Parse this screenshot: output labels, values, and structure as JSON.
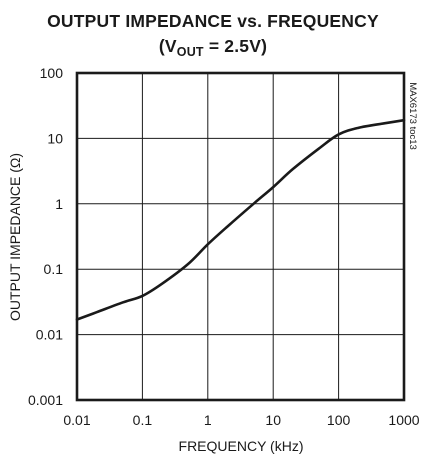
{
  "chart_data": {
    "type": "line",
    "title": "OUTPUT IMPEDANCE vs. FREQUENCY",
    "subtitle": {
      "prefix": "(V",
      "subscript": "OUT",
      "suffix": " = 2.5V)"
    },
    "xlabel": "FREQUENCY (kHz)",
    "ylabel": "OUTPUT IMPEDANCE (Ω)",
    "side_id": "MAX6173 toc13",
    "x_scale": "log",
    "y_scale": "log",
    "xlim": [
      0.01,
      1000
    ],
    "ylim": [
      0.001,
      100
    ],
    "x_ticks": [
      0.01,
      0.1,
      1,
      10,
      100,
      1000
    ],
    "y_ticks": [
      0.001,
      0.01,
      0.1,
      1,
      10,
      100
    ],
    "x_tick_labels": [
      "0.01",
      "0.1",
      "1",
      "10",
      "100",
      "1000"
    ],
    "y_tick_labels": [
      "0.001",
      "0.01",
      "0.1",
      "1",
      "10",
      "100"
    ],
    "grid": true,
    "series": [
      {
        "x": [
          0.01,
          0.02,
          0.05,
          0.1,
          0.2,
          0.5,
          1,
          2,
          5,
          10,
          20,
          50,
          100,
          200,
          500,
          1000
        ],
        "y": [
          0.017,
          0.022,
          0.031,
          0.039,
          0.06,
          0.12,
          0.24,
          0.45,
          1.0,
          1.8,
          3.4,
          7.0,
          11.5,
          14.5,
          17,
          19
        ]
      }
    ]
  },
  "colors": {
    "line": "#1a1a1a",
    "grid": "#1a1a1a",
    "background": "#ffffff"
  }
}
